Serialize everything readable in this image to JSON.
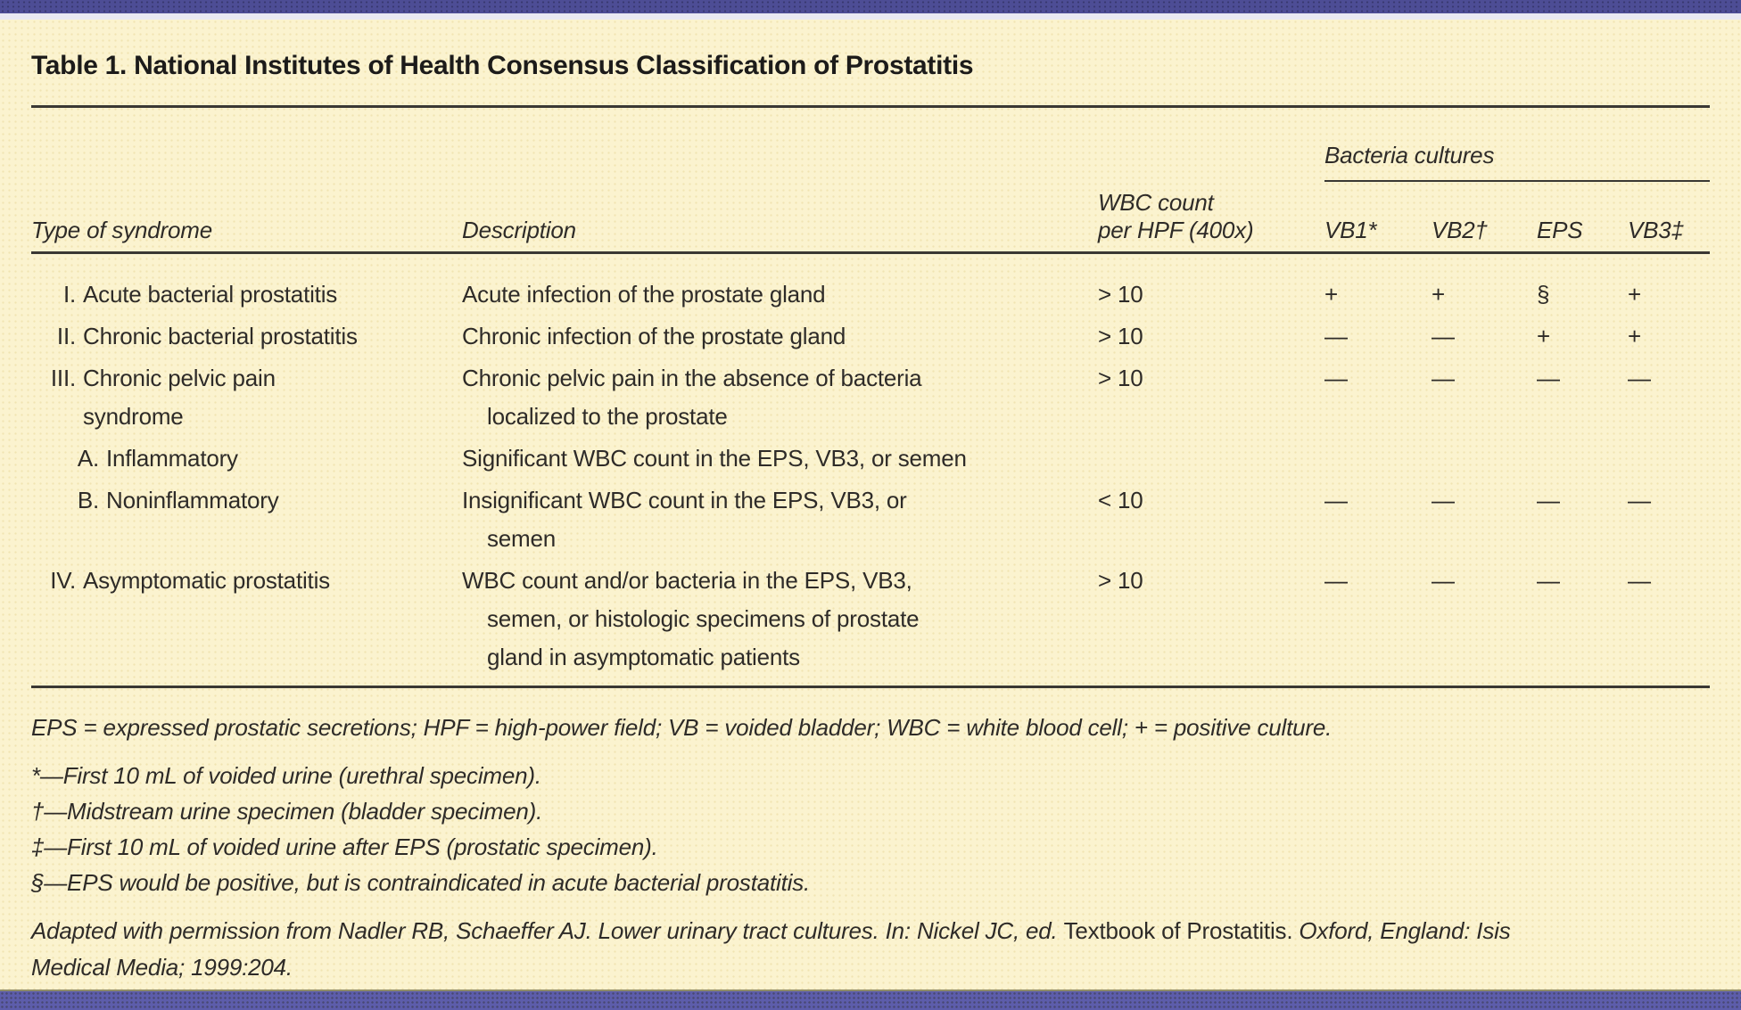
{
  "title": "Table 1. National Institutes of Health Consensus Classification of Prostatitis",
  "colors": {
    "background": "#FBF3CF",
    "top_bar": "#4D4D95",
    "bottom_bar": "#5D5DAB",
    "text": "#2E2B28",
    "rule": "#3A3833"
  },
  "table": {
    "group_header": "Bacteria cultures",
    "columns": {
      "type": "Type of syndrome",
      "description": "Description",
      "wbc_line1": "WBC count",
      "wbc_line2": "per HPF (400x)",
      "vb1": "VB1*",
      "vb2": "VB2†",
      "eps": "EPS",
      "vb3": "VB3‡"
    },
    "rows": [
      {
        "num": "I.",
        "sub": false,
        "type_lines": [
          "Acute bacterial prostatitis"
        ],
        "desc_lines": [
          "Acute infection of the prostate gland"
        ],
        "wbc": "> 10",
        "cultures": [
          "+",
          "+",
          "§",
          "+"
        ]
      },
      {
        "num": "II.",
        "sub": false,
        "type_lines": [
          "Chronic bacterial prostatitis"
        ],
        "desc_lines": [
          "Chronic infection of the prostate gland"
        ],
        "wbc": "> 10",
        "cultures": [
          "—",
          "—",
          "+",
          "+"
        ]
      },
      {
        "num": "III.",
        "sub": false,
        "type_lines": [
          "Chronic pelvic pain",
          "syndrome"
        ],
        "desc_lines": [
          "Chronic pelvic pain in the absence of bacteria",
          "localized to the prostate"
        ],
        "wbc": "> 10",
        "cultures": [
          "—",
          "—",
          "—",
          "—"
        ]
      },
      {
        "num": "A.",
        "sub": true,
        "type_lines": [
          "Inflammatory"
        ],
        "desc_lines": [
          "Significant WBC count in the EPS, VB3, or semen"
        ],
        "wbc": "",
        "cultures": [
          "",
          "",
          "",
          ""
        ]
      },
      {
        "num": "B.",
        "sub": true,
        "type_lines": [
          "Noninflammatory"
        ],
        "desc_lines": [
          "Insignificant WBC count in the EPS, VB3, or",
          "semen"
        ],
        "wbc": "< 10",
        "cultures": [
          "—",
          "—",
          "—",
          "—"
        ]
      },
      {
        "num": "IV.",
        "sub": false,
        "type_lines": [
          "Asymptomatic prostatitis"
        ],
        "desc_lines": [
          "WBC count and/or bacteria in the EPS, VB3,",
          "semen, or histologic specimens of prostate",
          "gland in asymptomatic patients"
        ],
        "wbc": "> 10",
        "cultures": [
          "—",
          "—",
          "—",
          "—"
        ]
      }
    ],
    "footnotes": [
      "EPS = expressed prostatic secretions; HPF = high-power field; VB = voided bladder; WBC = white blood cell; + = positive culture.",
      "*—First 10 mL of voided urine (urethral specimen).",
      "†—Midstream urine specimen (bladder specimen).",
      "‡—First 10 mL of voided urine after EPS (prostatic specimen).",
      "§—EPS would be positive, but is contraindicated in acute bacterial prostatitis."
    ],
    "citation": {
      "line1_pre": "Adapted with permission from Nadler RB, Schaeffer AJ. Lower urinary tract cultures. In: Nickel JC, ed. ",
      "line1_title": "Textbook of Prostatitis.",
      "line1_post": " Oxford, England: Isis",
      "line2": "Medical Media; 1999:204."
    }
  }
}
